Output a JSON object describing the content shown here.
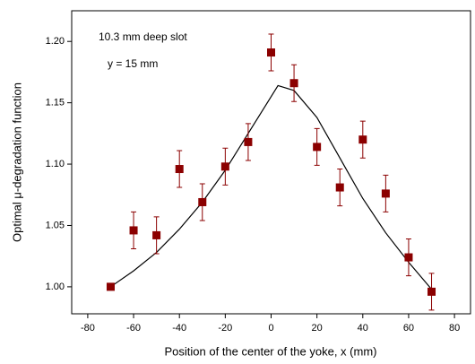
{
  "chart_data": {
    "type": "scatter",
    "x_label": "Position of the center of the yoke, x (mm)",
    "y_label": "Optimal μ-degradation function",
    "annotations": [
      "10.3 mm deep slot",
      "y = 15 mm"
    ],
    "points": {
      "color": "#8b0000",
      "x": [
        -70,
        -60,
        -50,
        -40,
        -30,
        -20,
        -10,
        0,
        10,
        20,
        30,
        40,
        50,
        60,
        70
      ],
      "values": [
        1.0,
        1.046,
        1.042,
        1.096,
        1.069,
        1.098,
        1.118,
        1.191,
        1.166,
        1.114,
        1.081,
        1.12,
        1.076,
        1.024,
        0.996
      ],
      "errors": [
        0,
        0.015,
        0.015,
        0.015,
        0.015,
        0.015,
        0.015,
        0.015,
        0.015,
        0.015,
        0.015,
        0.015,
        0.015,
        0.015,
        0.015
      ]
    },
    "curve": {
      "color": "#000000",
      "x": [
        -70,
        -60,
        -50,
        -40,
        -30,
        -20,
        -10,
        0,
        3,
        10,
        20,
        30,
        40,
        50,
        60,
        70
      ],
      "values": [
        1.0,
        1.013,
        1.028,
        1.047,
        1.069,
        1.095,
        1.125,
        1.155,
        1.164,
        1.16,
        1.138,
        1.105,
        1.072,
        1.044,
        1.02,
        0.998
      ]
    },
    "xlim": [
      -87,
      87
    ],
    "xticks": [
      -80,
      -60,
      -40,
      -20,
      0,
      20,
      40,
      60,
      80
    ],
    "ylim": [
      0.978,
      1.225
    ],
    "yticks": [
      {
        "value": 1.0,
        "label": "1.00"
      },
      1.05,
      {
        "value": 1.1,
        "label": "1.10"
      },
      1.15,
      {
        "value": 1.2,
        "label": "1.20"
      }
    ]
  }
}
